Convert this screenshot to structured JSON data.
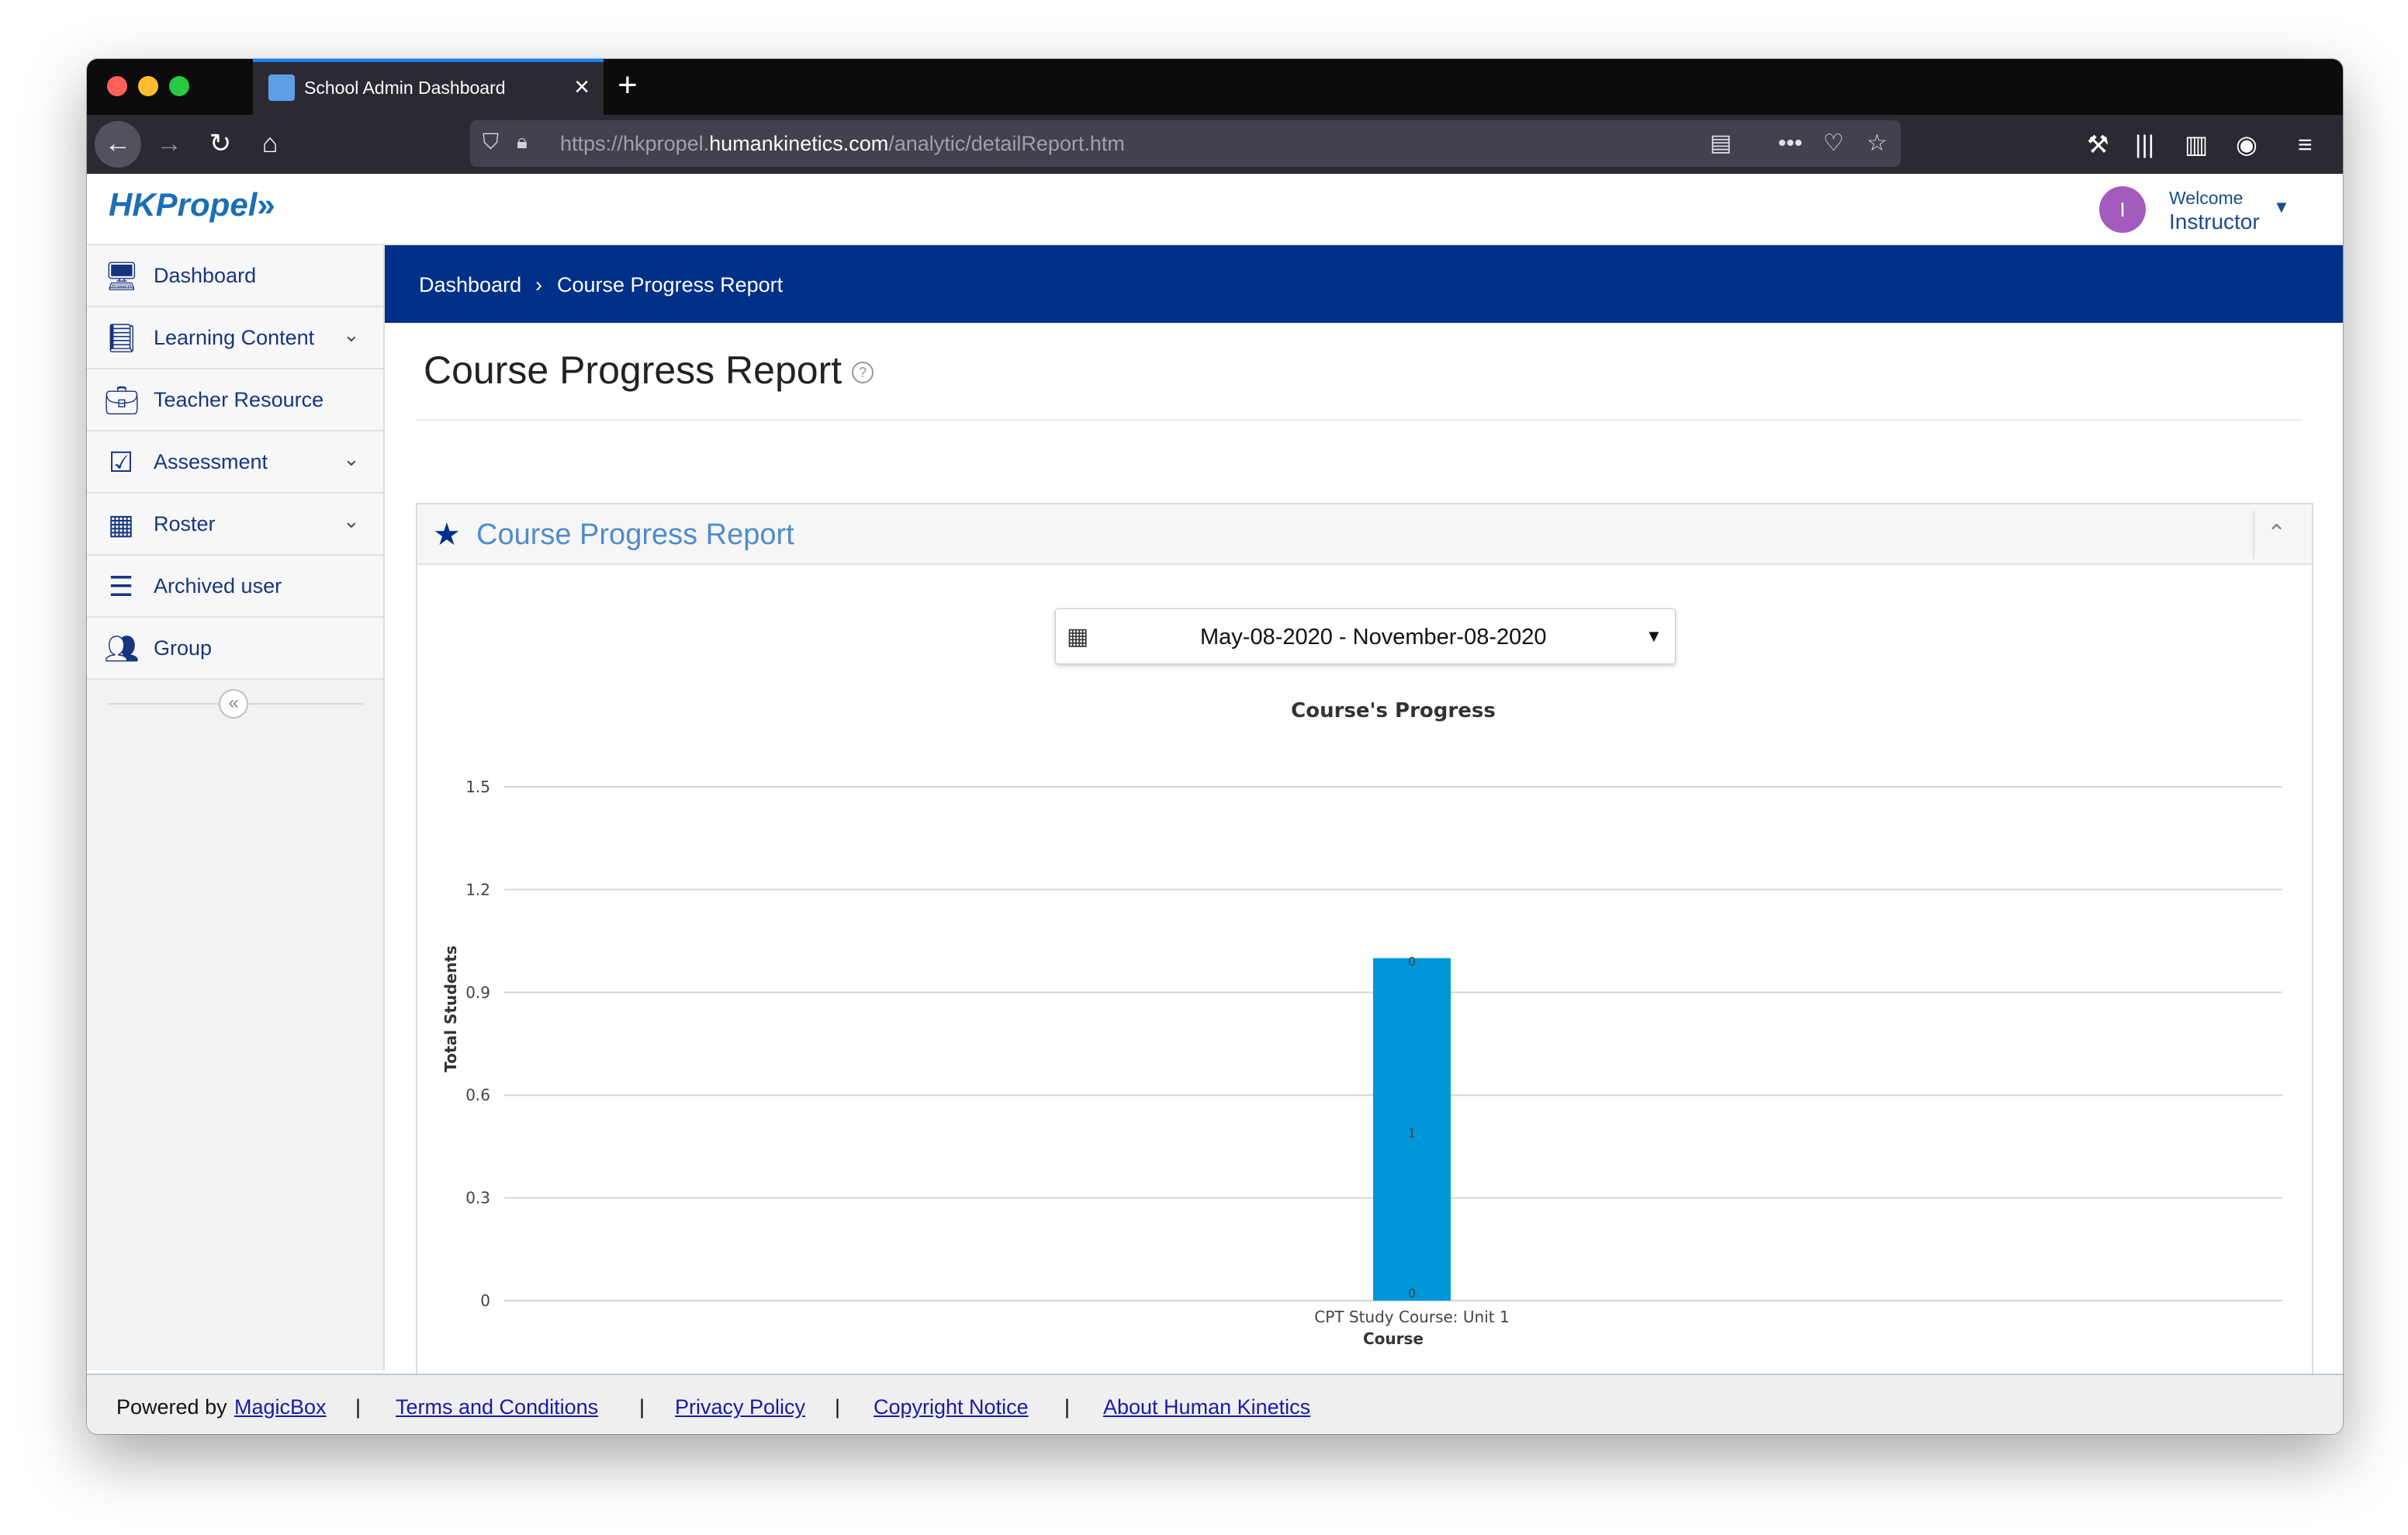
{
  "browser": {
    "tab_title": "School Admin Dashboard",
    "url_prefix": "https://hkpropel.",
    "url_domain": "humankinetics.com",
    "url_path": "/analytic/detailReport.htm"
  },
  "header": {
    "logo_text": "HKPropel",
    "avatar_initial": "I",
    "welcome": "Welcome",
    "user_name": "Instructor"
  },
  "sidebar": {
    "items": [
      {
        "label": "Dashboard",
        "icon": "monitor-icon",
        "expandable": false
      },
      {
        "label": "Learning Content",
        "icon": "book-icon",
        "expandable": true
      },
      {
        "label": "Teacher Resource",
        "icon": "briefcase-icon",
        "expandable": false
      },
      {
        "label": "Assessment",
        "icon": "checkbox-icon",
        "expandable": true
      },
      {
        "label": "Roster",
        "icon": "calendar-icon",
        "expandable": true
      },
      {
        "label": "Archived user",
        "icon": "list-icon",
        "expandable": false
      },
      {
        "label": "Group",
        "icon": "users-icon",
        "expandable": false
      }
    ],
    "collapse_glyph": "«"
  },
  "breadcrumb": {
    "home": "Dashboard",
    "separator": "›",
    "current": "Course Progress Report"
  },
  "page": {
    "title": "Course Progress Report",
    "help_glyph": "?"
  },
  "panel": {
    "title": "Course Progress Report",
    "date_range": "May-08-2020 - November-08-2020"
  },
  "chart_data": {
    "type": "bar",
    "title": "Course's Progress",
    "xlabel": "Course",
    "ylabel": "Total Students",
    "categories": [
      "CPT Study Course: Unit 1"
    ],
    "stacked_labels": [
      "0",
      "1",
      "0"
    ],
    "values": [
      1
    ],
    "ylim": [
      0,
      1.5
    ],
    "yticks": [
      0,
      0.3,
      0.6,
      0.9,
      1.2,
      1.5
    ],
    "ytick_labels": [
      "0",
      "0.3",
      "0.6",
      "0.9",
      "1.2",
      "1.5"
    ],
    "color": "#0097d9",
    "grid": true
  },
  "footer": {
    "powered_by": "Powered by",
    "magicbox": "MagicBox",
    "terms": "Terms and Conditions",
    "privacy": "Privacy Policy",
    "copyright": "Copyright Notice",
    "about": "About Human Kinetics",
    "separator": "|"
  }
}
